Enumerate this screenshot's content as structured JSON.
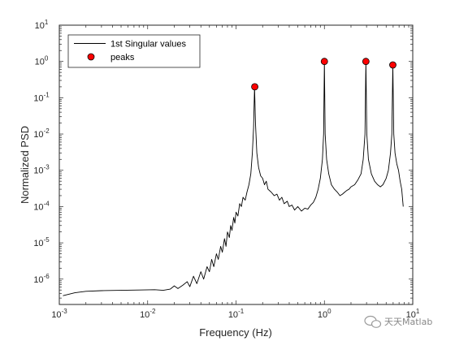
{
  "chart_data": {
    "type": "line",
    "title": "",
    "xlabel": "Frequency (Hz)",
    "ylabel": "Normalized PSD",
    "xscale": "log",
    "yscale": "log",
    "xlim": [
      0.001,
      10
    ],
    "ylim": [
      2e-07,
      10
    ],
    "x_ticks": [
      "10-3",
      "10-2",
      "10-1",
      "100",
      "101"
    ],
    "y_ticks": [
      "10-6",
      "10-5",
      "10-4",
      "10-3",
      "10-2",
      "10-1",
      "100",
      "101"
    ],
    "grid": false,
    "legend_position": "top-left",
    "series": [
      {
        "name": "1st Singular values",
        "style": "line",
        "color": "#000000",
        "points": [
          [
            0.0011,
            3.5e-07
          ],
          [
            0.0015,
            4.2e-07
          ],
          [
            0.002,
            4.6e-07
          ],
          [
            0.003,
            4.8e-07
          ],
          [
            0.005,
            4.9e-07
          ],
          [
            0.008,
            5e-07
          ],
          [
            0.012,
            5.1e-07
          ],
          [
            0.015,
            4.9e-07
          ],
          [
            0.018,
            5.3e-07
          ],
          [
            0.02,
            6.5e-07
          ],
          [
            0.022,
            5.5e-07
          ],
          [
            0.025,
            6.8e-07
          ],
          [
            0.028,
            8.5e-07
          ],
          [
            0.03,
            6.2e-07
          ],
          [
            0.033,
            1.2e-06
          ],
          [
            0.036,
            7.5e-07
          ],
          [
            0.04,
            1.6e-06
          ],
          [
            0.043,
            1e-06
          ],
          [
            0.047,
            2.2e-06
          ],
          [
            0.05,
            1.6e-06
          ],
          [
            0.053,
            3.5e-06
          ],
          [
            0.056,
            2.2e-06
          ],
          [
            0.06,
            5e-06
          ],
          [
            0.063,
            3.5e-06
          ],
          [
            0.067,
            8e-06
          ],
          [
            0.07,
            5.5e-06
          ],
          [
            0.074,
            1.3e-05
          ],
          [
            0.077,
            8e-06
          ],
          [
            0.08,
            2e-05
          ],
          [
            0.084,
            1.4e-05
          ],
          [
            0.087,
            3e-05
          ],
          [
            0.09,
            2.2e-05
          ],
          [
            0.094,
            5e-05
          ],
          [
            0.097,
            3.5e-05
          ],
          [
            0.1,
            7e-05
          ],
          [
            0.105,
            5.5e-05
          ],
          [
            0.11,
            0.00012
          ],
          [
            0.115,
            0.0001
          ],
          [
            0.12,
            0.00018
          ],
          [
            0.127,
            0.00015
          ],
          [
            0.133,
            0.00025
          ],
          [
            0.14,
            0.0004
          ],
          [
            0.147,
            0.0008
          ],
          [
            0.153,
            0.003
          ],
          [
            0.158,
            0.015
          ],
          [
            0.162,
            0.2
          ],
          [
            0.166,
            0.02
          ],
          [
            0.172,
            0.003
          ],
          [
            0.18,
            0.0012
          ],
          [
            0.19,
            0.0007
          ],
          [
            0.2,
            0.0006
          ],
          [
            0.21,
            0.0004
          ],
          [
            0.22,
            0.0005
          ],
          [
            0.23,
            0.0003
          ],
          [
            0.25,
            0.00025
          ],
          [
            0.27,
            0.0002
          ],
          [
            0.29,
            0.00022
          ],
          [
            0.31,
            0.00015
          ],
          [
            0.33,
            0.00018
          ],
          [
            0.35,
            0.00012
          ],
          [
            0.38,
            0.00014
          ],
          [
            0.4,
            0.0001
          ],
          [
            0.43,
            0.00011
          ],
          [
            0.46,
            8e-05
          ],
          [
            0.5,
            0.0001
          ],
          [
            0.55,
            7.5e-05
          ],
          [
            0.6,
            9e-05
          ],
          [
            0.65,
            8.5e-05
          ],
          [
            0.7,
            0.00011
          ],
          [
            0.75,
            0.00013
          ],
          [
            0.8,
            0.00018
          ],
          [
            0.85,
            0.0003
          ],
          [
            0.9,
            0.0006
          ],
          [
            0.95,
            0.002
          ],
          [
            0.98,
            0.01
          ],
          [
            1.0,
            1.0
          ],
          [
            1.02,
            0.01
          ],
          [
            1.06,
            0.002
          ],
          [
            1.12,
            0.0008
          ],
          [
            1.2,
            0.0004
          ],
          [
            1.3,
            0.0003
          ],
          [
            1.4,
            0.00025
          ],
          [
            1.5,
            0.0002
          ],
          [
            1.6,
            0.00022
          ],
          [
            1.7,
            0.00025
          ],
          [
            1.8,
            0.00028
          ],
          [
            1.9,
            0.0003
          ],
          [
            2.0,
            0.00035
          ],
          [
            2.2,
            0.0004
          ],
          [
            2.4,
            0.00055
          ],
          [
            2.6,
            0.0008
          ],
          [
            2.75,
            0.002
          ],
          [
            2.88,
            0.01
          ],
          [
            2.95,
            1.0
          ],
          [
            3.02,
            0.01
          ],
          [
            3.15,
            0.002
          ],
          [
            3.4,
            0.0008
          ],
          [
            3.7,
            0.0005
          ],
          [
            4.0,
            0.0004
          ],
          [
            4.3,
            0.00035
          ],
          [
            4.6,
            0.0004
          ],
          [
            5.0,
            0.0006
          ],
          [
            5.3,
            0.001
          ],
          [
            5.6,
            0.003
          ],
          [
            5.8,
            0.01
          ],
          [
            5.95,
            0.8
          ],
          [
            6.1,
            0.01
          ],
          [
            6.3,
            0.003
          ],
          [
            6.6,
            0.0015
          ],
          [
            6.9,
            0.001
          ],
          [
            7.2,
            0.0005
          ],
          [
            7.5,
            0.0003
          ],
          [
            7.8,
            0.0001
          ]
        ]
      },
      {
        "name": "peaks",
        "style": "marker",
        "marker": "circle",
        "color": "#ff0000",
        "points": [
          [
            0.163,
            0.2
          ],
          [
            1.0,
            1.0
          ],
          [
            2.95,
            1.0
          ],
          [
            5.95,
            0.8
          ]
        ]
      }
    ]
  },
  "watermark": {
    "text": "天天Matlab",
    "icon": "wechat-bubble-icon"
  }
}
